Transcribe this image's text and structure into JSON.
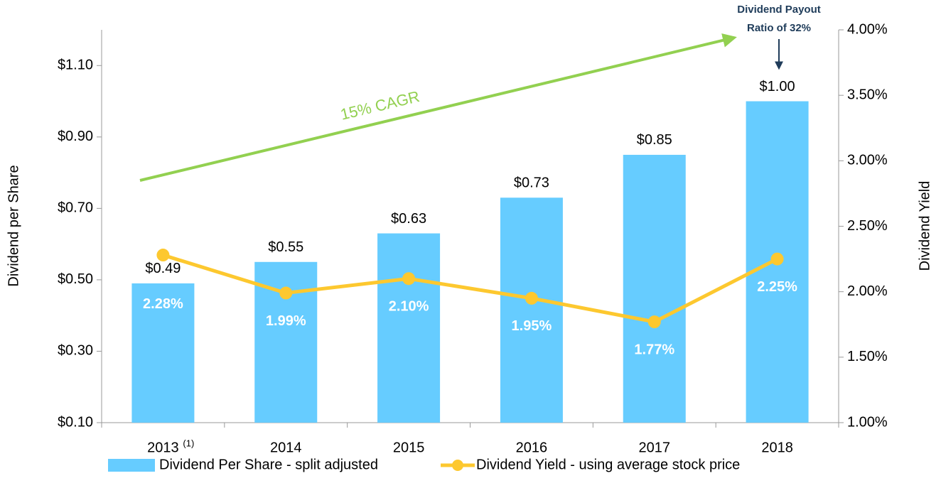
{
  "chart_data": {
    "type": "bar_line",
    "categories": [
      "2013",
      "2014",
      "2015",
      "2016",
      "2017",
      "2018"
    ],
    "category_notes": [
      "(1)",
      null,
      null,
      null,
      null,
      null
    ],
    "ylabel": "Dividend per Share",
    "y2label": "Dividend Yield",
    "ylim": [
      0.1,
      1.2
    ],
    "yticks": [
      {
        "value": 0.1,
        "label": "$0.10"
      },
      {
        "value": 0.3,
        "label": "$0.30"
      },
      {
        "value": 0.5,
        "label": "$0.50"
      },
      {
        "value": 0.7,
        "label": "$0.70"
      },
      {
        "value": 0.9,
        "label": "$0.90"
      },
      {
        "value": 1.1,
        "label": "$1.10"
      }
    ],
    "y2lim": [
      1.0,
      4.0
    ],
    "y2ticks": [
      {
        "value": 1.0,
        "label": "1.00%"
      },
      {
        "value": 1.5,
        "label": "1.50%"
      },
      {
        "value": 2.0,
        "label": "2.00%"
      },
      {
        "value": 2.5,
        "label": "2.50%"
      },
      {
        "value": 3.0,
        "label": "3.00%"
      },
      {
        "value": 3.5,
        "label": "3.50%"
      },
      {
        "value": 4.0,
        "label": "4.00%"
      }
    ],
    "series": [
      {
        "name": "Dividend Per Share - split adjusted",
        "type": "bar",
        "axis": "y",
        "color": "#66ccff",
        "values": [
          0.49,
          0.55,
          0.63,
          0.73,
          0.85,
          1.0
        ],
        "value_labels": [
          "$0.49",
          "$0.55",
          "$0.63",
          "$0.73",
          "$0.85",
          "$1.00"
        ]
      },
      {
        "name": "Dividend Yield - using average stock price",
        "type": "line",
        "axis": "y2",
        "color": "#fdc82f",
        "values": [
          2.28,
          1.99,
          2.1,
          1.95,
          1.77,
          2.25
        ],
        "value_labels": [
          "2.28%",
          "1.99%",
          "2.10%",
          "1.95%",
          "1.77%",
          "2.25%"
        ]
      }
    ],
    "annotations": [
      {
        "text": "15% CAGR",
        "color": "#92d050"
      },
      {
        "lines": [
          "Dividend Payout",
          "Ratio of 32%"
        ],
        "color": "#1f3c5a"
      }
    ],
    "legend": "bottom"
  }
}
